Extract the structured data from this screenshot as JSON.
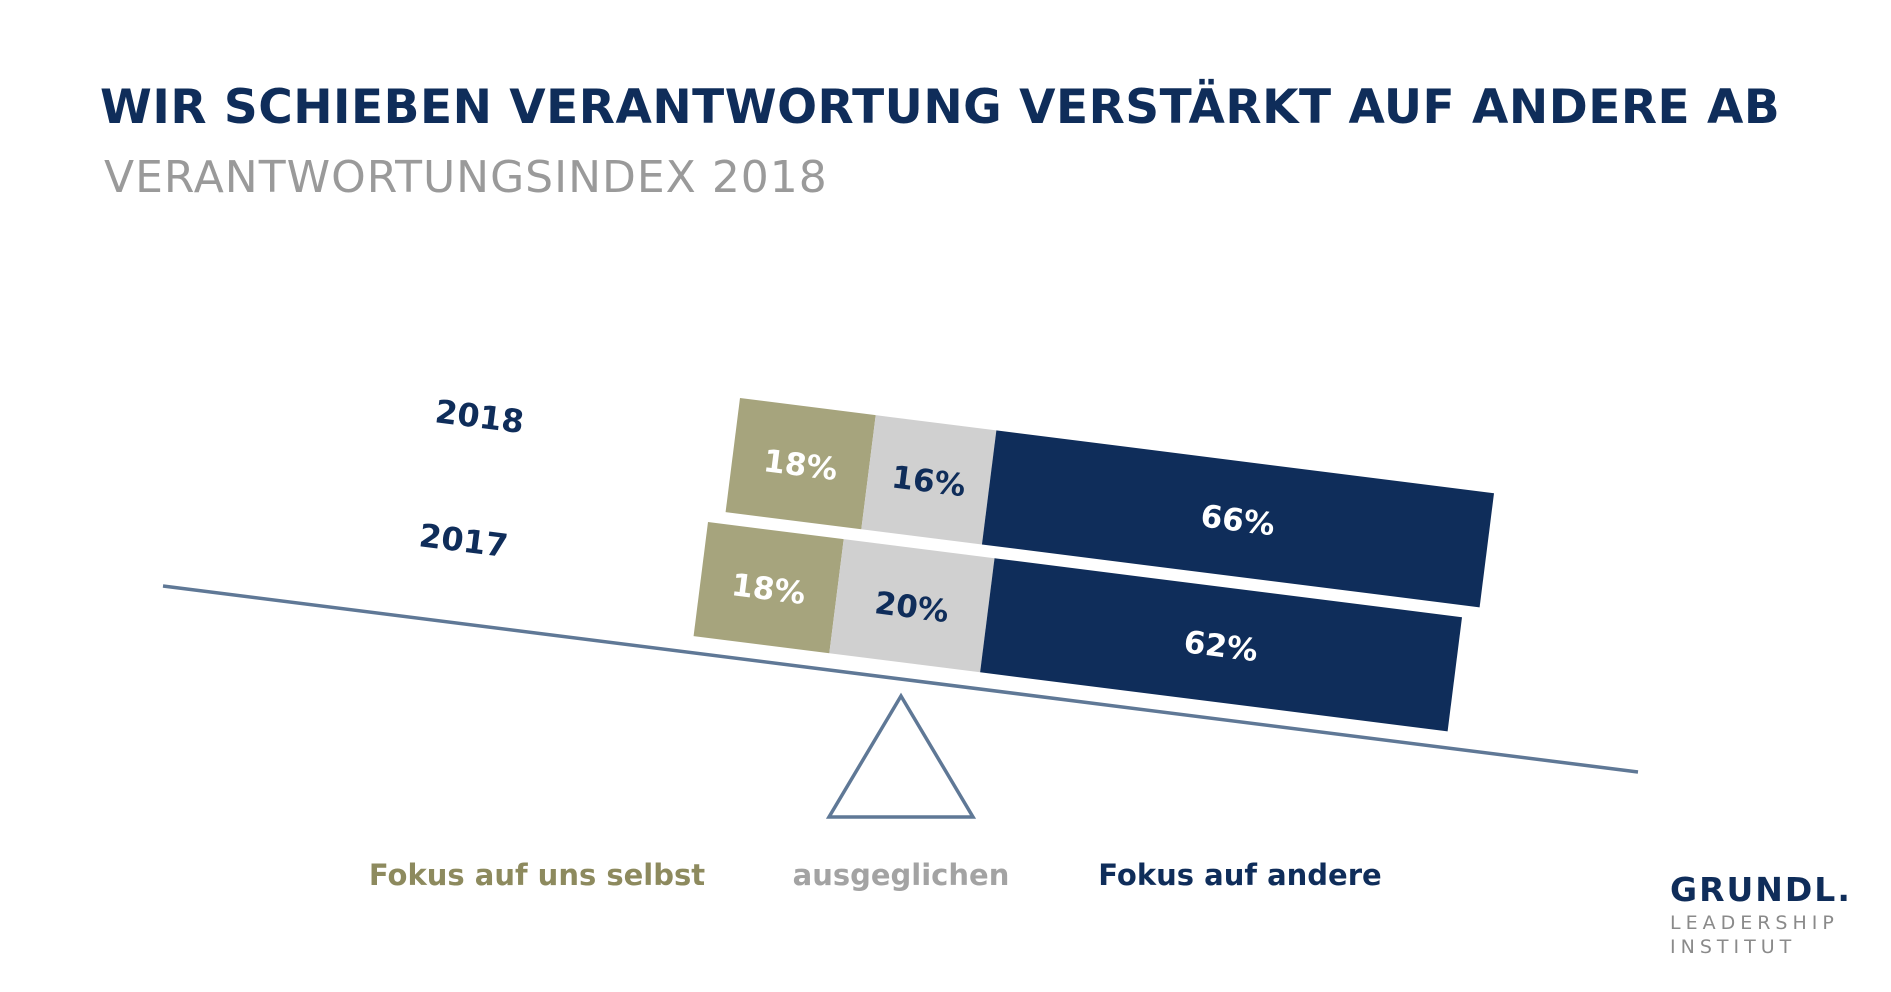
{
  "header": {
    "title": "WIR SCHIEBEN VERANTWORTUNG VERSTÄRKT AUF ANDERE AB",
    "subtitle": "VERANTWORTUNGSINDEX 2018"
  },
  "chart_data": {
    "type": "bar",
    "orientation": "horizontal",
    "stacked": true,
    "normalized_percent": true,
    "title": "WIR SCHIEBEN VERANTWORTUNG VERSTÄRKT AUF ANDERE AB",
    "subtitle": "VERANTWORTUNGSINDEX 2018",
    "categories": [
      "2018",
      "2017"
    ],
    "series": [
      {
        "name": "Fokus auf uns selbst",
        "values": [
          18,
          18
        ],
        "labels": [
          "18%",
          "18%"
        ],
        "color": "#a6a47d",
        "label_color": "#ffffff"
      },
      {
        "name": "ausgeglichen",
        "values": [
          16,
          20
        ],
        "labels": [
          "16%",
          "20%"
        ],
        "color": "#d0d0d0",
        "label_color": "#0f2d5a"
      },
      {
        "name": "Fokus auf andere",
        "values": [
          66,
          62
        ],
        "labels": [
          "66%",
          "62%"
        ],
        "color": "#0f2d5a",
        "label_color": "#ffffff"
      }
    ],
    "legend": [
      "Fokus auf uns selbst",
      "ausgeglichen",
      "Fokus auf andere"
    ],
    "legend_colors": [
      "#8d8a5e",
      "#a3a3a3",
      "#0f2d5a"
    ],
    "legend_position": "bottom",
    "grid": false,
    "decoration": "seesaw-scale",
    "colors": {
      "year_label": "#0f2d5a",
      "scale_line": "#5f7896"
    }
  },
  "logo": {
    "main": "GRUNDL.",
    "line1": "LEADERSHIP",
    "line2": "INSTITUT"
  }
}
